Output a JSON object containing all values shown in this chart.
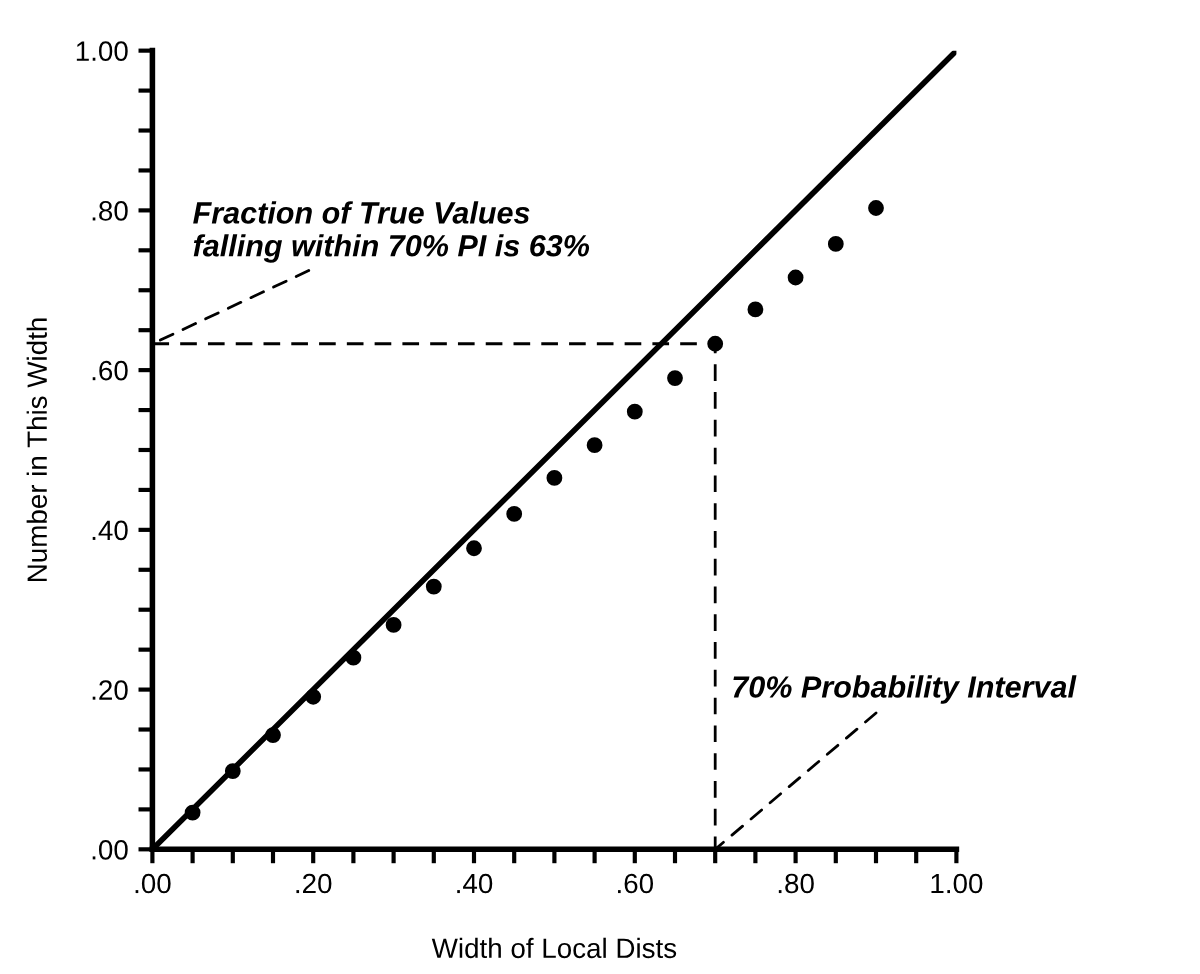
{
  "chart_data": {
    "type": "scatter",
    "xlabel": "Width of Local Dists",
    "ylabel": "Number in This Width",
    "x": [
      0.05,
      0.1,
      0.15,
      0.2,
      0.25,
      0.3,
      0.35,
      0.4,
      0.45,
      0.5,
      0.55,
      0.6,
      0.65,
      0.7,
      0.75,
      0.8,
      0.85,
      0.9
    ],
    "series": [
      {
        "color": "#000000",
        "marker": "circle",
        "values": [
          0.046,
          0.098,
          0.143,
          0.191,
          0.24,
          0.281,
          0.329,
          0.377,
          0.42,
          0.465,
          0.506,
          0.548,
          0.59,
          0.633,
          0.676,
          0.716,
          0.758,
          0.803
        ]
      },
      {
        "type": "line",
        "color": "#000000",
        "line_style": "solid",
        "x": [
          0,
          1
        ],
        "values": [
          0,
          1
        ]
      },
      {
        "type": "line",
        "color": "#000000",
        "line_style": "dashed",
        "x": [
          0,
          0.7,
          0.7
        ],
        "values": [
          0.633,
          0.633,
          0
        ]
      }
    ],
    "annotations": [
      {
        "text": "Fraction of True Values\nfalling within 70% PI is 63%",
        "x": 0,
        "y": 0.633
      },
      {
        "text": "70% Probability Interval",
        "x": 0.7,
        "y": 0
      }
    ],
    "xlim": [
      0,
      1
    ],
    "ylim": [
      0,
      1
    ],
    "xticks": [
      {
        "value": 0,
        "label": ".00"
      },
      {
        "value": 0.05,
        "label": null
      },
      {
        "value": 0.1,
        "label": null
      },
      {
        "value": 0.15,
        "label": null
      },
      {
        "value": 0.2,
        "label": ".20"
      },
      {
        "value": 0.25,
        "label": null
      },
      {
        "value": 0.3,
        "label": null
      },
      {
        "value": 0.35,
        "label": null
      },
      {
        "value": 0.4,
        "label": ".40"
      },
      {
        "value": 0.45,
        "label": null
      },
      {
        "value": 0.5,
        "label": null
      },
      {
        "value": 0.55,
        "label": null
      },
      {
        "value": 0.6,
        "label": ".60"
      },
      {
        "value": 0.65,
        "label": null
      },
      {
        "value": 0.7,
        "label": null
      },
      {
        "value": 0.75,
        "label": null
      },
      {
        "value": 0.8,
        "label": ".80"
      },
      {
        "value": 0.85,
        "label": null
      },
      {
        "value": 0.9,
        "label": null
      },
      {
        "value": 0.95,
        "label": null
      },
      {
        "value": 1,
        "label": "1.00"
      }
    ],
    "yticks": [
      {
        "value": 0,
        "label": ".00"
      },
      {
        "value": 0.05,
        "label": null
      },
      {
        "value": 0.1,
        "label": null
      },
      {
        "value": 0.15,
        "label": null
      },
      {
        "value": 0.2,
        "label": ".20"
      },
      {
        "value": 0.25,
        "label": null
      },
      {
        "value": 0.3,
        "label": null
      },
      {
        "value": 0.35,
        "label": null
      },
      {
        "value": 0.4,
        "label": ".40"
      },
      {
        "value": 0.45,
        "label": null
      },
      {
        "value": 0.5,
        "label": null
      },
      {
        "value": 0.55,
        "label": null
      },
      {
        "value": 0.6,
        "label": ".60"
      },
      {
        "value": 0.65,
        "label": null
      },
      {
        "value": 0.7,
        "label": null
      },
      {
        "value": 0.75,
        "label": null
      },
      {
        "value": 0.8,
        "label": ".80"
      },
      {
        "value": 0.85,
        "label": null
      },
      {
        "value": 0.9,
        "label": null
      },
      {
        "value": 0.95,
        "label": null
      },
      {
        "value": 1,
        "label": "1.00"
      }
    ],
    "grid": false,
    "legend": false
  }
}
